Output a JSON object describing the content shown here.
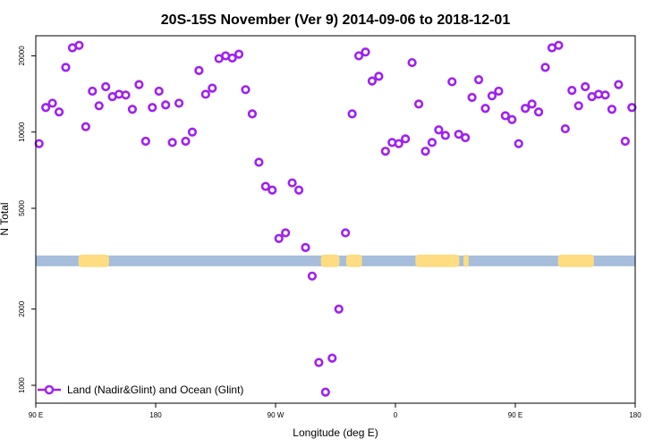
{
  "chart_data": {
    "type": "scatter",
    "title": "20S-15S November (Ver 9)   2014-09-06 to 2018-12-01",
    "xlabel": "Longitude (deg E)",
    "ylabel": "N Total",
    "y_scale": "log",
    "xlim": [
      90,
      540
    ],
    "ylim": [
      850,
      24000
    ],
    "x_ticks": [
      {
        "value": 90,
        "label": "90 E"
      },
      {
        "value": 180,
        "label": "180"
      },
      {
        "value": 270,
        "label": "90 W"
      },
      {
        "value": 360,
        "label": "0"
      },
      {
        "value": 450,
        "label": "90 E"
      },
      {
        "value": 540,
        "label": "180"
      }
    ],
    "y_ticks": [
      {
        "value": 1000,
        "label": "1000"
      },
      {
        "value": 2000,
        "label": "2000"
      },
      {
        "value": 5000,
        "label": "5000"
      },
      {
        "value": 10000,
        "label": "10000"
      },
      {
        "value": 20000,
        "label": "20000"
      }
    ],
    "legend": {
      "label": "Land (Nadir&Glint) and Ocean (Glint)",
      "position": "bottom-left",
      "color": "#a020f0"
    },
    "series": [
      {
        "name": "Land (Nadir&Glint) and Ocean (Glint)",
        "color": "#a020f0",
        "points": [
          [
            92.5,
            9000
          ],
          [
            97.5,
            12500
          ],
          [
            102.5,
            13000
          ],
          [
            107.5,
            12000
          ],
          [
            112.5,
            18000
          ],
          [
            117.5,
            21500
          ],
          [
            122.5,
            22000
          ],
          [
            127.5,
            10500
          ],
          [
            132.5,
            14500
          ],
          [
            137.5,
            12700
          ],
          [
            142.5,
            15100
          ],
          [
            147.5,
            13800
          ],
          [
            152.5,
            14100
          ],
          [
            157.5,
            14000
          ],
          [
            162.5,
            12300
          ],
          [
            167.5,
            15400
          ],
          [
            172.5,
            9200
          ],
          [
            177.5,
            12500
          ],
          [
            182.5,
            14500
          ],
          [
            187.5,
            12800
          ],
          [
            192.5,
            9100
          ],
          [
            197.5,
            13000
          ],
          [
            202.5,
            9200
          ],
          [
            207.5,
            10000
          ],
          [
            212.5,
            17500
          ],
          [
            217.5,
            14100
          ],
          [
            222.5,
            14900
          ],
          [
            227.5,
            19500
          ],
          [
            232.5,
            20000
          ],
          [
            237.5,
            19600
          ],
          [
            242.5,
            20300
          ],
          [
            247.5,
            14700
          ],
          [
            252.5,
            11800
          ],
          [
            257.5,
            7600
          ],
          [
            262.5,
            6100
          ],
          [
            267.5,
            5900
          ],
          [
            272.5,
            3800
          ],
          [
            277.5,
            4000
          ],
          [
            282.5,
            6300
          ],
          [
            287.5,
            5900
          ],
          [
            292.5,
            3500
          ],
          [
            297.5,
            2700
          ],
          [
            302.5,
            1230
          ],
          [
            307.5,
            940
          ],
          [
            312.5,
            1280
          ],
          [
            317.5,
            2000
          ],
          [
            322.5,
            4000
          ],
          [
            327.5,
            11800
          ],
          [
            332.5,
            20000
          ],
          [
            337.5,
            20700
          ],
          [
            342.5,
            15900
          ],
          [
            347.5,
            16600
          ],
          [
            352.5,
            8400
          ],
          [
            357.5,
            9100
          ],
          [
            362.5,
            9000
          ],
          [
            367.5,
            9400
          ],
          [
            372.5,
            18800
          ],
          [
            377.5,
            12900
          ],
          [
            382.5,
            8400
          ],
          [
            387.5,
            9100
          ],
          [
            392.5,
            10200
          ],
          [
            397.5,
            9700
          ],
          [
            402.5,
            15800
          ],
          [
            407.5,
            9800
          ],
          [
            412.5,
            9500
          ],
          [
            417.5,
            13700
          ],
          [
            422.5,
            16100
          ],
          [
            427.5,
            12400
          ],
          [
            432.5,
            13900
          ],
          [
            437.5,
            14500
          ],
          [
            442.5,
            11600
          ],
          [
            447.5,
            11200
          ],
          [
            452.5,
            9000
          ],
          [
            457.5,
            12400
          ],
          [
            462.5,
            12900
          ],
          [
            467.5,
            12000
          ],
          [
            472.5,
            18000
          ],
          [
            477.5,
            21500
          ],
          [
            482.5,
            22000
          ],
          [
            487.5,
            10300
          ],
          [
            492.5,
            14600
          ],
          [
            497.5,
            12700
          ],
          [
            502.5,
            15100
          ],
          [
            507.5,
            13800
          ],
          [
            512.5,
            14100
          ],
          [
            517.5,
            14000
          ],
          [
            522.5,
            12300
          ],
          [
            527.5,
            15400
          ],
          [
            532.5,
            9200
          ],
          [
            537.5,
            12500
          ]
        ]
      }
    ],
    "surface_strip": {
      "y_value": 3100,
      "ocean_color": "#a6bddb",
      "land_color": "#fddc82",
      "land_ranges": [
        [
          122,
          145
        ],
        [
          304,
          318
        ],
        [
          323,
          335
        ],
        [
          375,
          408
        ],
        [
          411,
          415
        ],
        [
          482,
          509
        ]
      ]
    }
  }
}
